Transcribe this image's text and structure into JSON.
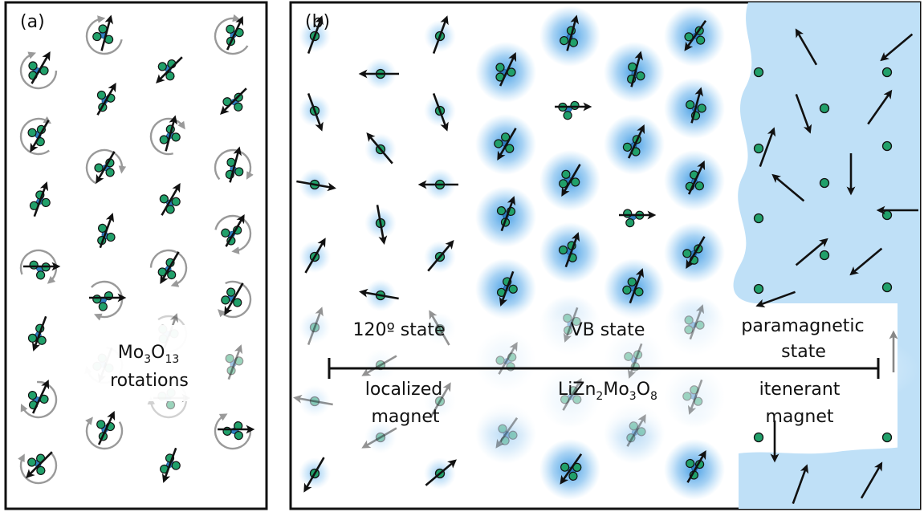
{
  "panel_a": {
    "label": "(a)",
    "caption_formula": {
      "base_mo": "Mo",
      "sub_mo": "3",
      "base_o": "O",
      "sub_o": "13"
    },
    "caption_line2": "rotations"
  },
  "panel_b": {
    "label": "(b)",
    "states": {
      "left": "120º state",
      "middle": "VB state",
      "right_line1": "paramagnetic",
      "right_line2": "state"
    },
    "scale": {
      "left_line1": "localized",
      "left_line2": "magnet",
      "compound": {
        "p1": "LiZn",
        "s1": "2",
        "p2": "Mo",
        "s2": "3",
        "p3": "O",
        "s3": "8"
      },
      "right_line1": "itenerant",
      "right_line2": "magnet"
    }
  },
  "colors": {
    "atom_fill": "#21a06a",
    "bond_blue": "#2f7fc2",
    "glow_blue": "#3b9be6",
    "paramagnetic_bg": "#bfe0f7",
    "rotation_arrow": "#9a9a9a",
    "frame": "#111111"
  },
  "icons": [
    "cluster-icon",
    "spin-arrow-icon",
    "rotation-arrow-icon",
    "site-dot-icon"
  ]
}
